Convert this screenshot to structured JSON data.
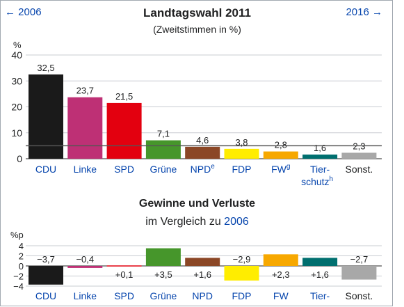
{
  "nav": {
    "prev_label": "← 2006",
    "next_label": "2016 →"
  },
  "main": {
    "title": "Landtagswahl 2011",
    "subtitle": "(Zweitstimmen in %)"
  },
  "secondary": {
    "title": "Gewinne und Verluste",
    "subtitle_prefix": "im Vergleich zu ",
    "subtitle_link": "2006"
  },
  "chart_data": [
    {
      "type": "bar",
      "ylabel": "%",
      "ylim": [
        0,
        40
      ],
      "yticks": [
        0,
        10,
        20,
        30,
        40
      ],
      "grid": true,
      "threshold": 5,
      "categories": [
        {
          "label": "CDU",
          "sup": "",
          "link": true
        },
        {
          "label": "Linke",
          "sup": "",
          "link": true
        },
        {
          "label": "SPD",
          "sup": "",
          "link": true
        },
        {
          "label": "Grüne",
          "sup": "",
          "link": true
        },
        {
          "label": "NPD",
          "sup": "e",
          "link": true
        },
        {
          "label": "FDP",
          "sup": "",
          "link": true
        },
        {
          "label": "FW",
          "sup": "g",
          "link": true
        },
        {
          "label": "Tier-",
          "label2": "schutz",
          "sup": "h",
          "link": true
        },
        {
          "label": "Sonst.",
          "sup": "",
          "link": false
        }
      ],
      "values": [
        32.5,
        23.7,
        21.5,
        7.1,
        4.6,
        3.8,
        2.8,
        1.6,
        2.3
      ],
      "value_labels": [
        "32,5",
        "23,7",
        "21,5",
        "7,1",
        "4,6",
        "3,8",
        "2,8",
        "1,6",
        "2,3"
      ],
      "colors": [
        "#1a1a1a",
        "#be3075",
        "#e3000f",
        "#46962b",
        "#8b4726",
        "#ffed00",
        "#f7a800",
        "#006f6f",
        "#a8a8a8"
      ]
    },
    {
      "type": "bar",
      "ylabel": "%p",
      "ylim": [
        -4,
        4
      ],
      "yticks": [
        -4,
        -2,
        0,
        2,
        4
      ],
      "grid": true,
      "categories": [
        {
          "label": "CDU",
          "link": true
        },
        {
          "label": "Linke",
          "link": true
        },
        {
          "label": "SPD",
          "link": true
        },
        {
          "label": "Grüne",
          "link": true
        },
        {
          "label": "NPD",
          "link": true
        },
        {
          "label": "FDP",
          "link": true
        },
        {
          "label": "FW",
          "link": true
        },
        {
          "label": "Tier-",
          "link": true
        },
        {
          "label": "Sonst.",
          "link": false
        }
      ],
      "values": [
        -3.7,
        -0.4,
        0.1,
        3.5,
        1.6,
        -2.9,
        2.3,
        1.6,
        -2.7
      ],
      "value_labels": [
        "−3,7",
        "−0,4",
        "+0,1",
        "+3,5",
        "+1,6",
        "−2,9",
        "+2,3",
        "+1,6",
        "−2,7"
      ],
      "colors": [
        "#1a1a1a",
        "#be3075",
        "#e3000f",
        "#46962b",
        "#8b4726",
        "#ffed00",
        "#f7a800",
        "#006f6f",
        "#a8a8a8"
      ]
    }
  ]
}
